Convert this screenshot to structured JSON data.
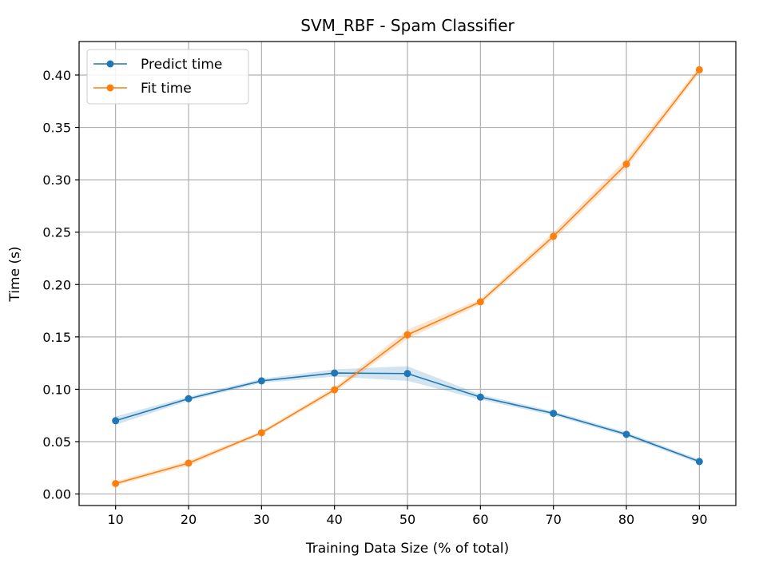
{
  "chart_data": {
    "type": "line",
    "title": "SVM_RBF - Spam Classifier",
    "xlabel": "Training Data Size (% of total)",
    "ylabel": "Time (s)",
    "x": [
      10,
      20,
      30,
      40,
      50,
      60,
      70,
      80,
      90
    ],
    "xlim": [
      5,
      95
    ],
    "ylim": [
      -0.011,
      0.432
    ],
    "xticks": [
      "10",
      "20",
      "30",
      "40",
      "50",
      "60",
      "70",
      "80",
      "90"
    ],
    "yticks": [
      "0.00",
      "0.05",
      "0.10",
      "0.15",
      "0.20",
      "0.25",
      "0.30",
      "0.35",
      "0.40"
    ],
    "ytick_values": [
      0.0,
      0.05,
      0.1,
      0.15,
      0.2,
      0.25,
      0.3,
      0.35,
      0.4
    ],
    "grid": true,
    "legend_position": "top-left",
    "series": [
      {
        "name": "Predict time",
        "color": "#1f77b4",
        "band_color": "#1f77b4",
        "values": [
          0.07,
          0.091,
          0.108,
          0.1155,
          0.115,
          0.0925,
          0.077,
          0.057,
          0.031
        ],
        "band_lower": [
          0.066,
          0.089,
          0.106,
          0.112,
          0.108,
          0.09,
          0.075,
          0.055,
          0.029
        ],
        "band_upper": [
          0.074,
          0.093,
          0.11,
          0.119,
          0.122,
          0.095,
          0.079,
          0.059,
          0.033
        ]
      },
      {
        "name": "Fit time",
        "color": "#ff7f0e",
        "band_color": "#ff7f0e",
        "values": [
          0.01,
          0.0295,
          0.0585,
          0.0995,
          0.152,
          0.1835,
          0.246,
          0.315,
          0.405
        ],
        "band_lower": [
          0.008,
          0.027,
          0.057,
          0.097,
          0.148,
          0.181,
          0.242,
          0.311,
          0.402
        ],
        "band_upper": [
          0.012,
          0.032,
          0.06,
          0.102,
          0.157,
          0.186,
          0.25,
          0.32,
          0.408
        ]
      }
    ]
  }
}
